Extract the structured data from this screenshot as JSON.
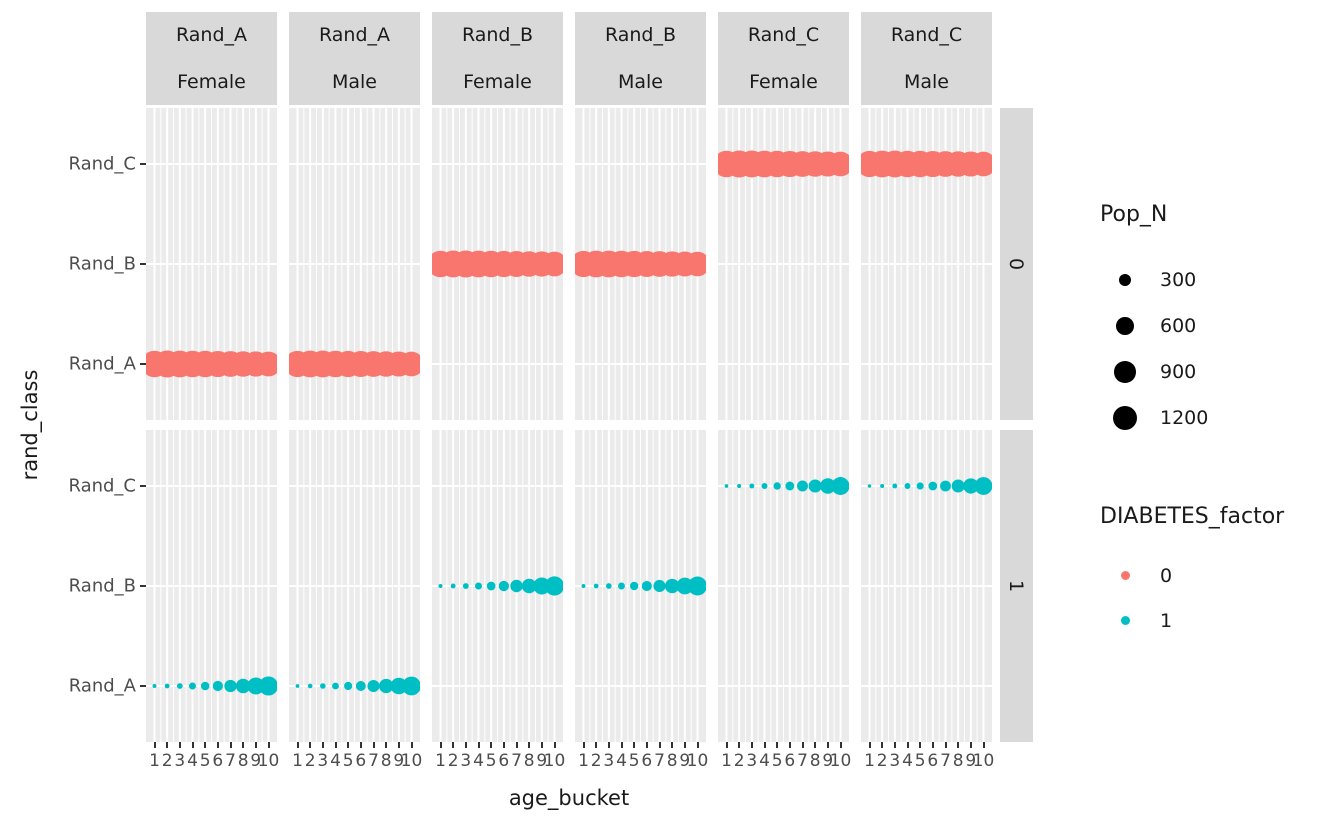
{
  "colors": {
    "background": "#ffffff",
    "strip_bg": "#d9d9d9",
    "panel_bg": "#ebebeb",
    "grid": "#ffffff",
    "tick": "#333333",
    "tick_label": "#4d4d4d",
    "factor_0": "#F8766D",
    "factor_1": "#00BFC4",
    "size_key": "#000000"
  },
  "chart_data": {
    "type": "scatter",
    "title": "",
    "xlabel": "age_bucket",
    "ylabel": "rand_class",
    "x": [
      1,
      2,
      3,
      4,
      5,
      6,
      7,
      8,
      9,
      10
    ],
    "x_tick_labels": [
      "1",
      "2",
      "3",
      "4",
      "5",
      "6",
      "7",
      "8",
      "9",
      "10"
    ],
    "y_categories_top_to_bottom": [
      "Rand_C",
      "Rand_B",
      "Rand_A"
    ],
    "facet_col_strips": [
      {
        "line1": "Rand_A",
        "line2": "Female"
      },
      {
        "line1": "Rand_A",
        "line2": "Male"
      },
      {
        "line1": "Rand_B",
        "line2": "Female"
      },
      {
        "line1": "Rand_B",
        "line2": "Male"
      },
      {
        "line1": "Rand_C",
        "line2": "Female"
      },
      {
        "line1": "Rand_C",
        "line2": "Male"
      }
    ],
    "facet_row_strips": [
      "0",
      "1"
    ],
    "grid": true,
    "legend_position": "right",
    "size_scale_max": 1400,
    "legend_size": {
      "title": "Pop_N",
      "breaks": [
        "300",
        "600",
        "900",
        "1200"
      ],
      "values": [
        300,
        600,
        900,
        1200
      ]
    },
    "legend_color": {
      "title": "DIABETES_factor",
      "entries": [
        {
          "label": "0",
          "color": "#F8766D"
        },
        {
          "label": "1",
          "color": "#00BFC4"
        }
      ]
    },
    "series": [
      {
        "facet_col": 0,
        "facet_row": "0",
        "y": "Rand_A",
        "diabetes_factor": "0",
        "color": "#F8766D",
        "pop_n": [
          1350,
          1400,
          1380,
          1360,
          1340,
          1310,
          1280,
          1250,
          1220,
          1180
        ]
      },
      {
        "facet_col": 1,
        "facet_row": "0",
        "y": "Rand_A",
        "diabetes_factor": "0",
        "color": "#F8766D",
        "pop_n": [
          1330,
          1380,
          1390,
          1360,
          1330,
          1300,
          1270,
          1240,
          1210,
          1170
        ]
      },
      {
        "facet_col": 2,
        "facet_row": "0",
        "y": "Rand_B",
        "diabetes_factor": "0",
        "color": "#F8766D",
        "pop_n": [
          1340,
          1390,
          1400,
          1370,
          1350,
          1320,
          1290,
          1250,
          1220,
          1180
        ]
      },
      {
        "facet_col": 3,
        "facet_row": "0",
        "y": "Rand_B",
        "diabetes_factor": "0",
        "color": "#F8766D",
        "pop_n": [
          1320,
          1370,
          1380,
          1360,
          1330,
          1300,
          1270,
          1230,
          1200,
          1160
        ]
      },
      {
        "facet_col": 4,
        "facet_row": "0",
        "y": "Rand_C",
        "diabetes_factor": "0",
        "color": "#F8766D",
        "pop_n": [
          1350,
          1400,
          1390,
          1370,
          1340,
          1310,
          1280,
          1250,
          1210,
          1170
        ]
      },
      {
        "facet_col": 5,
        "facet_row": "0",
        "y": "Rand_C",
        "diabetes_factor": "0",
        "color": "#F8766D",
        "pop_n": [
          1330,
          1380,
          1390,
          1360,
          1340,
          1310,
          1280,
          1240,
          1210,
          1170
        ]
      },
      {
        "facet_col": 0,
        "facet_row": "1",
        "y": "Rand_A",
        "diabetes_factor": "1",
        "color": "#00BFC4",
        "pop_n": [
          30,
          45,
          65,
          95,
          140,
          200,
          290,
          400,
          550,
          700
        ]
      },
      {
        "facet_col": 1,
        "facet_row": "1",
        "y": "Rand_A",
        "diabetes_factor": "1",
        "color": "#00BFC4",
        "pop_n": [
          28,
          42,
          60,
          90,
          130,
          190,
          280,
          390,
          530,
          680
        ]
      },
      {
        "facet_col": 2,
        "facet_row": "1",
        "y": "Rand_B",
        "diabetes_factor": "1",
        "color": "#00BFC4",
        "pop_n": [
          32,
          46,
          66,
          96,
          145,
          205,
          295,
          410,
          560,
          710
        ]
      },
      {
        "facet_col": 3,
        "facet_row": "1",
        "y": "Rand_B",
        "diabetes_factor": "1",
        "color": "#00BFC4",
        "pop_n": [
          30,
          44,
          62,
          92,
          135,
          195,
          285,
          395,
          540,
          690
        ]
      },
      {
        "facet_col": 4,
        "facet_row": "1",
        "y": "Rand_C",
        "diabetes_factor": "1",
        "color": "#00BFC4",
        "pop_n": [
          26,
          34,
          48,
          70,
          105,
          155,
          230,
          330,
          460,
          620
        ]
      },
      {
        "facet_col": 5,
        "facet_row": "1",
        "y": "Rand_C",
        "diabetes_factor": "1",
        "color": "#00BFC4",
        "pop_n": [
          24,
          32,
          46,
          68,
          100,
          150,
          225,
          325,
          450,
          610
        ]
      }
    ]
  }
}
